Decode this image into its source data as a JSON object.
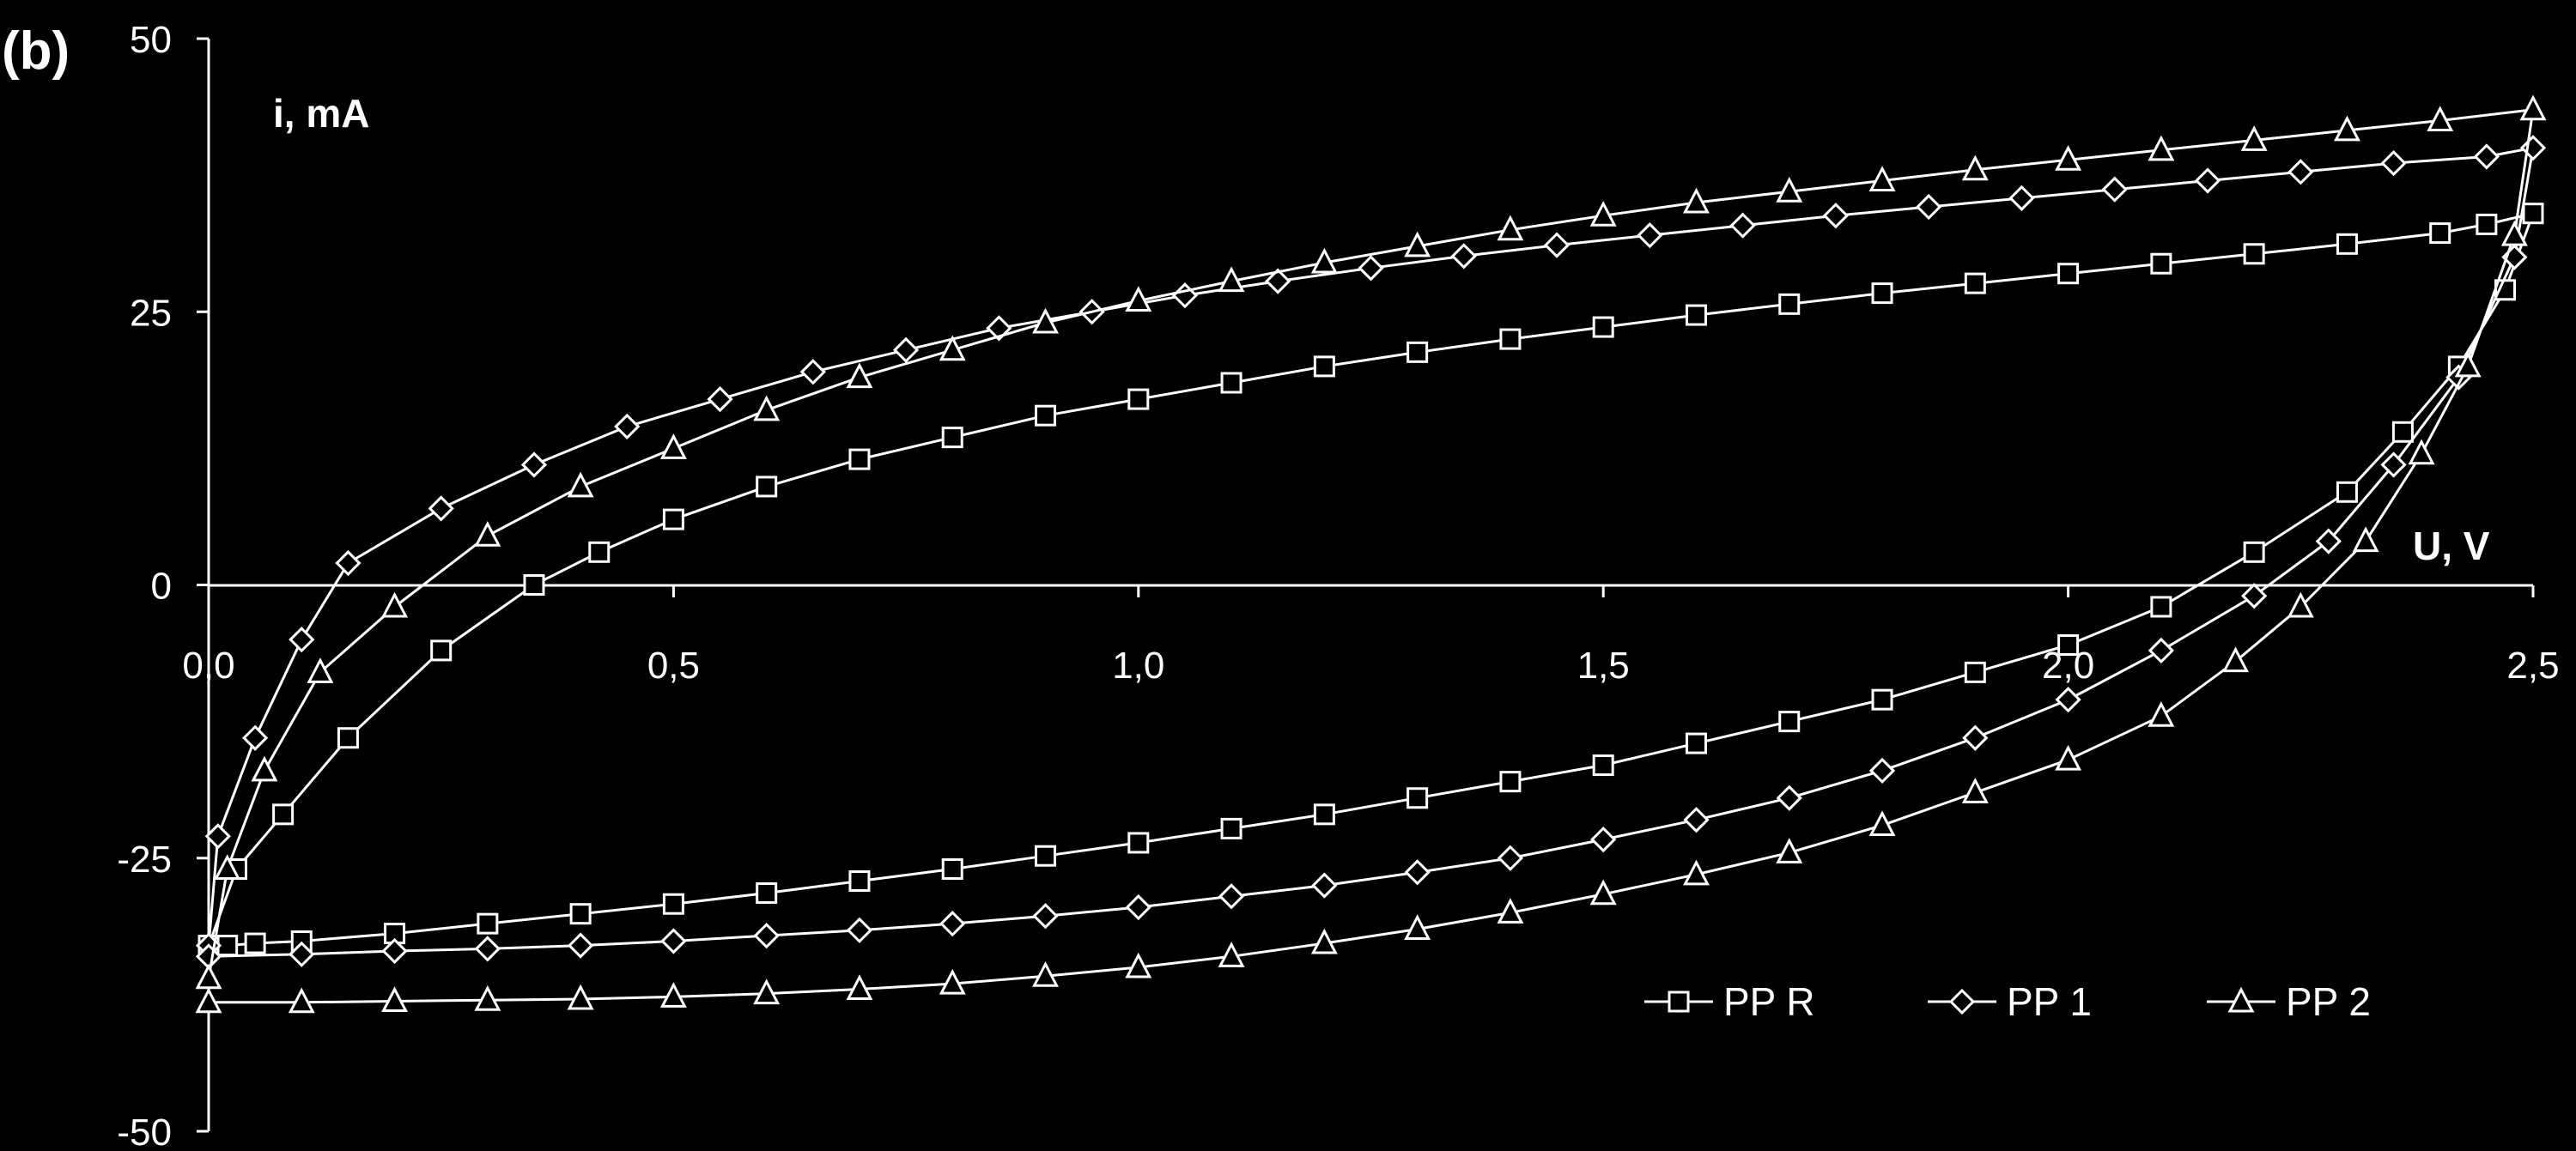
{
  "panel_label": "(b)",
  "chart_data": {
    "type": "line",
    "title": "",
    "xlabel": "U, V",
    "ylabel": "i, mA",
    "xlim": [
      0,
      2.5
    ],
    "ylim": [
      -50,
      50
    ],
    "x_ticks": [
      0,
      0.5,
      1.0,
      1.5,
      2.0,
      2.5
    ],
    "x_tick_labels": [
      "0,0",
      "0,5",
      "1,0",
      "1,5",
      "2,0",
      "2,5"
    ],
    "y_ticks": [
      50,
      25,
      0,
      -25,
      -50
    ],
    "y_tick_labels": [
      "50",
      "25",
      "0",
      "-25",
      "-50"
    ],
    "grid": false,
    "legend_position": "bottom-right",
    "colors": {
      "background": "#000000",
      "foreground": "#ffffff"
    },
    "series": [
      {
        "name": "PP R",
        "marker": "square",
        "x": [
          0.0,
          0.03,
          0.08,
          0.15,
          0.25,
          0.35,
          0.42,
          0.5,
          0.6,
          0.7,
          0.8,
          0.9,
          1.0,
          1.1,
          1.2,
          1.3,
          1.4,
          1.5,
          1.6,
          1.7,
          1.8,
          1.9,
          2.0,
          2.1,
          2.2,
          2.3,
          2.4,
          2.45,
          2.5,
          2.47,
          2.42,
          2.36,
          2.3,
          2.2,
          2.1,
          2.0,
          1.9,
          1.8,
          1.7,
          1.6,
          1.5,
          1.4,
          1.3,
          1.2,
          1.1,
          1.0,
          0.9,
          0.8,
          0.7,
          0.6,
          0.5,
          0.4,
          0.3,
          0.2,
          0.1,
          0.05,
          0.02,
          0.0
        ],
        "y": [
          -33,
          -26,
          -21,
          -14,
          -6,
          0,
          3,
          6,
          9,
          11.5,
          13.5,
          15.5,
          17,
          18.5,
          20,
          21.3,
          22.5,
          23.6,
          24.7,
          25.7,
          26.7,
          27.6,
          28.5,
          29.4,
          30.3,
          31.2,
          32.2,
          33.0,
          34,
          27,
          20,
          14,
          8.5,
          3,
          -2,
          -5.5,
          -8,
          -10.5,
          -12.5,
          -14.5,
          -16.5,
          -18,
          -19.5,
          -21,
          -22.3,
          -23.6,
          -24.8,
          -26,
          -27.1,
          -28.2,
          -29.2,
          -30.1,
          -31,
          -31.9,
          -32.6,
          -32.8,
          -33,
          -33
        ]
      },
      {
        "name": "PP 1",
        "marker": "diamond",
        "x": [
          0.0,
          0.01,
          0.05,
          0.1,
          0.15,
          0.25,
          0.35,
          0.45,
          0.55,
          0.65,
          0.75,
          0.85,
          0.95,
          1.05,
          1.15,
          1.25,
          1.35,
          1.45,
          1.55,
          1.65,
          1.75,
          1.85,
          1.95,
          2.05,
          2.15,
          2.25,
          2.35,
          2.45,
          2.5,
          2.48,
          2.42,
          2.35,
          2.28,
          2.2,
          2.1,
          2.0,
          1.9,
          1.8,
          1.7,
          1.6,
          1.5,
          1.4,
          1.3,
          1.2,
          1.1,
          1.0,
          0.9,
          0.8,
          0.7,
          0.6,
          0.5,
          0.4,
          0.3,
          0.2,
          0.1,
          0.0
        ],
        "y": [
          -33,
          -23,
          -14,
          -5,
          2,
          7,
          11,
          14.5,
          17,
          19.5,
          21.5,
          23.5,
          25,
          26.5,
          27.8,
          29,
          30.1,
          31.1,
          32,
          32.9,
          33.8,
          34.6,
          35.4,
          36.2,
          37.0,
          37.8,
          38.6,
          39.2,
          40,
          30,
          19,
          11,
          4,
          -1,
          -6,
          -10.5,
          -14,
          -17,
          -19.5,
          -21.5,
          -23.3,
          -25,
          -26.3,
          -27.5,
          -28.5,
          -29.5,
          -30.3,
          -31,
          -31.6,
          -32.1,
          -32.6,
          -33,
          -33.3,
          -33.5,
          -33.8,
          -34
        ]
      },
      {
        "name": "PP 2",
        "marker": "triangle",
        "x": [
          0.0,
          0.02,
          0.06,
          0.12,
          0.2,
          0.3,
          0.4,
          0.5,
          0.6,
          0.7,
          0.8,
          0.9,
          1.0,
          1.1,
          1.2,
          1.3,
          1.4,
          1.5,
          1.6,
          1.7,
          1.8,
          1.9,
          2.0,
          2.1,
          2.2,
          2.3,
          2.4,
          2.5,
          2.48,
          2.43,
          2.38,
          2.32,
          2.25,
          2.18,
          2.1,
          2.0,
          1.9,
          1.8,
          1.7,
          1.6,
          1.5,
          1.4,
          1.3,
          1.2,
          1.1,
          1.0,
          0.9,
          0.8,
          0.7,
          0.6,
          0.5,
          0.4,
          0.3,
          0.2,
          0.1,
          0.0
        ],
        "y": [
          -36,
          -26,
          -17,
          -8,
          -2,
          4.5,
          9,
          12.5,
          16,
          19,
          21.5,
          24,
          26,
          27.8,
          29.5,
          31,
          32.5,
          33.8,
          35,
          36,
          37,
          38,
          38.9,
          39.8,
          40.7,
          41.6,
          42.5,
          43.5,
          32,
          20,
          12,
          4,
          -2,
          -7,
          -12,
          -16,
          -19,
          -22,
          -24.5,
          -26.5,
          -28.3,
          -30,
          -31.5,
          -32.8,
          -34,
          -35,
          -35.8,
          -36.5,
          -37,
          -37.4,
          -37.7,
          -37.9,
          -38,
          -38.1,
          -38.2,
          -38.2
        ]
      }
    ]
  }
}
